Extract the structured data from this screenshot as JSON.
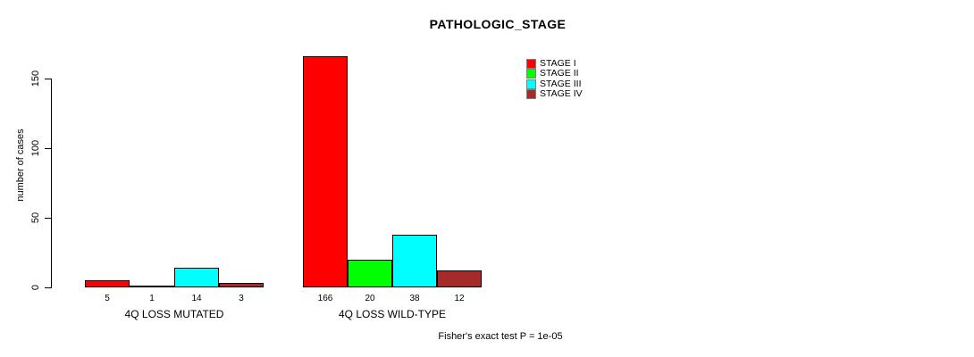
{
  "chart_data": {
    "type": "bar",
    "title": "PATHOLOGIC_STAGE",
    "ylabel": "number of cases",
    "xlabel": "",
    "categories": [
      "4Q LOSS MUTATED",
      "4Q LOSS WILD-TYPE"
    ],
    "series": [
      {
        "name": "STAGE I",
        "color": "#ff0000",
        "values": [
          5,
          166
        ]
      },
      {
        "name": "STAGE II",
        "color": "#00ff00",
        "values": [
          1,
          20
        ]
      },
      {
        "name": "STAGE III",
        "color": "#00ffff",
        "values": [
          14,
          38
        ]
      },
      {
        "name": "STAGE IV",
        "color": "#a52a2a",
        "values": [
          3,
          12
        ]
      }
    ],
    "value_labels_shown": true,
    "yticks": [
      0,
      50,
      100,
      150
    ],
    "ylim": [
      0,
      170
    ],
    "grid": false,
    "legend_position": "top-right",
    "bar_border_color": "#000000",
    "annotation": "Fisher's exact test P = 1e-05"
  }
}
